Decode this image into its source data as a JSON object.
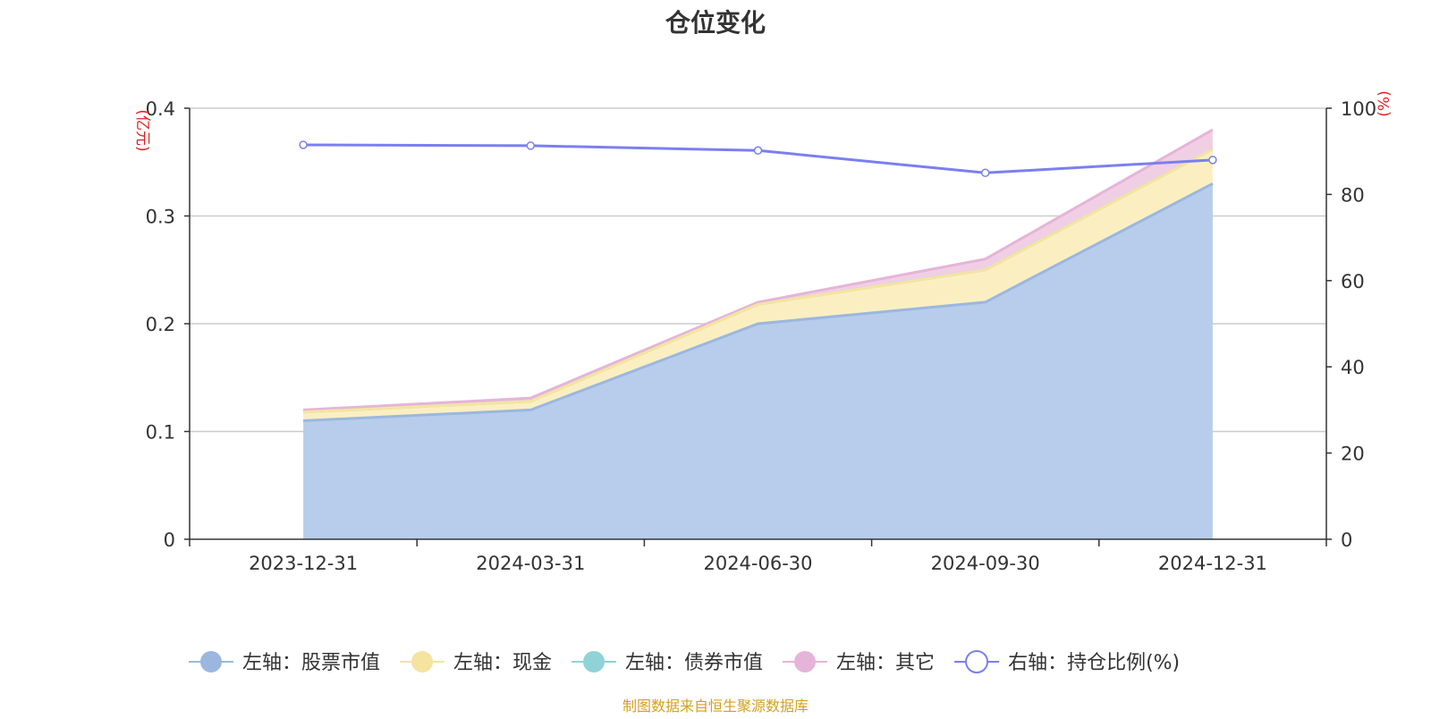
{
  "chart_data": {
    "type": "area",
    "title": "仓位变化",
    "categories": [
      "2023-12-31",
      "2024-03-31",
      "2024-06-30",
      "2024-09-30",
      "2024-12-31"
    ],
    "y_left": {
      "unit": "(亿元)",
      "ylim": [
        0,
        0.4
      ],
      "ticks": [
        "0",
        "0.1",
        "0.2",
        "0.3",
        "0.4"
      ]
    },
    "y_right": {
      "unit": "(%)",
      "ylim": [
        0,
        100
      ],
      "ticks": [
        "0",
        "20",
        "40",
        "60",
        "80",
        "100"
      ]
    },
    "stacked": true,
    "series": [
      {
        "name": "左轴：股票市值",
        "axis": "left",
        "color": "#9bb7e0",
        "fill": "#b8cdeb",
        "values": [
          0.11,
          0.12,
          0.2,
          0.22,
          0.33
        ]
      },
      {
        "name": "左轴：现金",
        "axis": "left",
        "color": "#f5e49f",
        "fill": "#fbefc2",
        "values": [
          0.008,
          0.008,
          0.018,
          0.03,
          0.032
        ]
      },
      {
        "name": "左轴：债券市值",
        "axis": "left",
        "color": "#8fd3d6",
        "fill": "#b9e6e7",
        "values": [
          0,
          0,
          0,
          0,
          0
        ]
      },
      {
        "name": "左轴：其它",
        "axis": "left",
        "color": "#e6b4d8",
        "fill": "#f0cfe5",
        "values": [
          0.002,
          0.003,
          0.002,
          0.01,
          0.018
        ]
      },
      {
        "name": "右轴：持仓比例(%)",
        "axis": "right",
        "type": "line",
        "color": "#7b7ff0",
        "values": [
          91.5,
          91.3,
          90.2,
          85.0,
          88.0
        ]
      }
    ],
    "grid": true,
    "legend": "bottom"
  },
  "source_text": "制图数据来自恒生聚源数据库",
  "colors": {
    "title": "#333333",
    "axis_unit": "#e02020",
    "source": "#d4a020",
    "grid": "#cccccc"
  }
}
